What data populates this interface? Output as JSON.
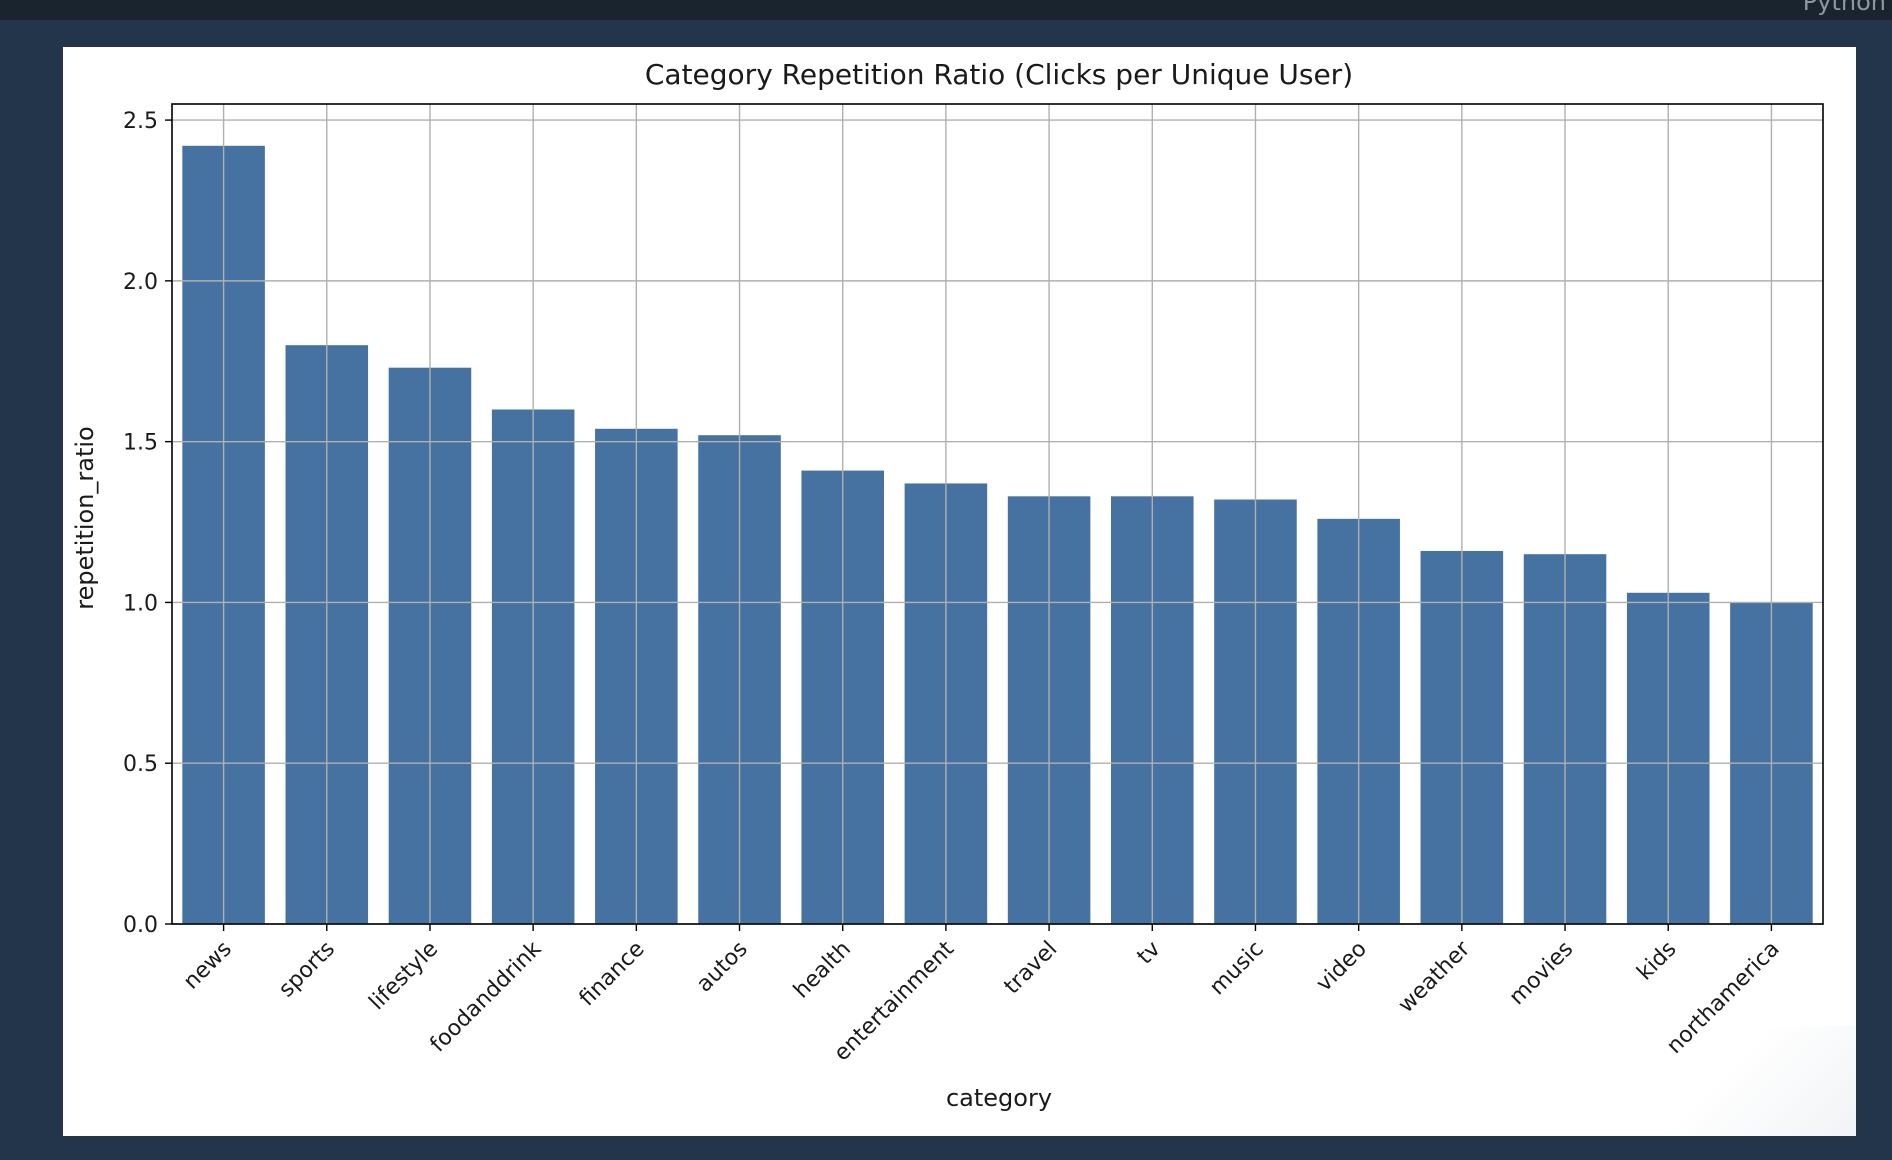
{
  "window": {
    "corner_label": "Python"
  },
  "colors": {
    "background": "#22354b",
    "topbar": "#1a242f",
    "bar": "#4572a0",
    "grid": "#b0b0b0",
    "axis": "#000000",
    "text": "#1a1a1a"
  },
  "chart_data": {
    "type": "bar",
    "title": "Category Repetition Ratio (Clicks per Unique User)",
    "xlabel": "category",
    "ylabel": "repetition_ratio",
    "categories": [
      "news",
      "sports",
      "lifestyle",
      "foodanddrink",
      "finance",
      "autos",
      "health",
      "entertainment",
      "travel",
      "tv",
      "music",
      "video",
      "weather",
      "movies",
      "kids",
      "northamerica"
    ],
    "values": [
      2.42,
      1.8,
      1.73,
      1.6,
      1.54,
      1.52,
      1.41,
      1.37,
      1.33,
      1.33,
      1.32,
      1.26,
      1.16,
      1.15,
      1.03,
      1.0
    ],
    "ylim": [
      0,
      2.55
    ],
    "yticks": [
      "0.0",
      "0.5",
      "1.0",
      "1.5",
      "2.0",
      "2.5"
    ],
    "grid": true,
    "legend": "none"
  }
}
